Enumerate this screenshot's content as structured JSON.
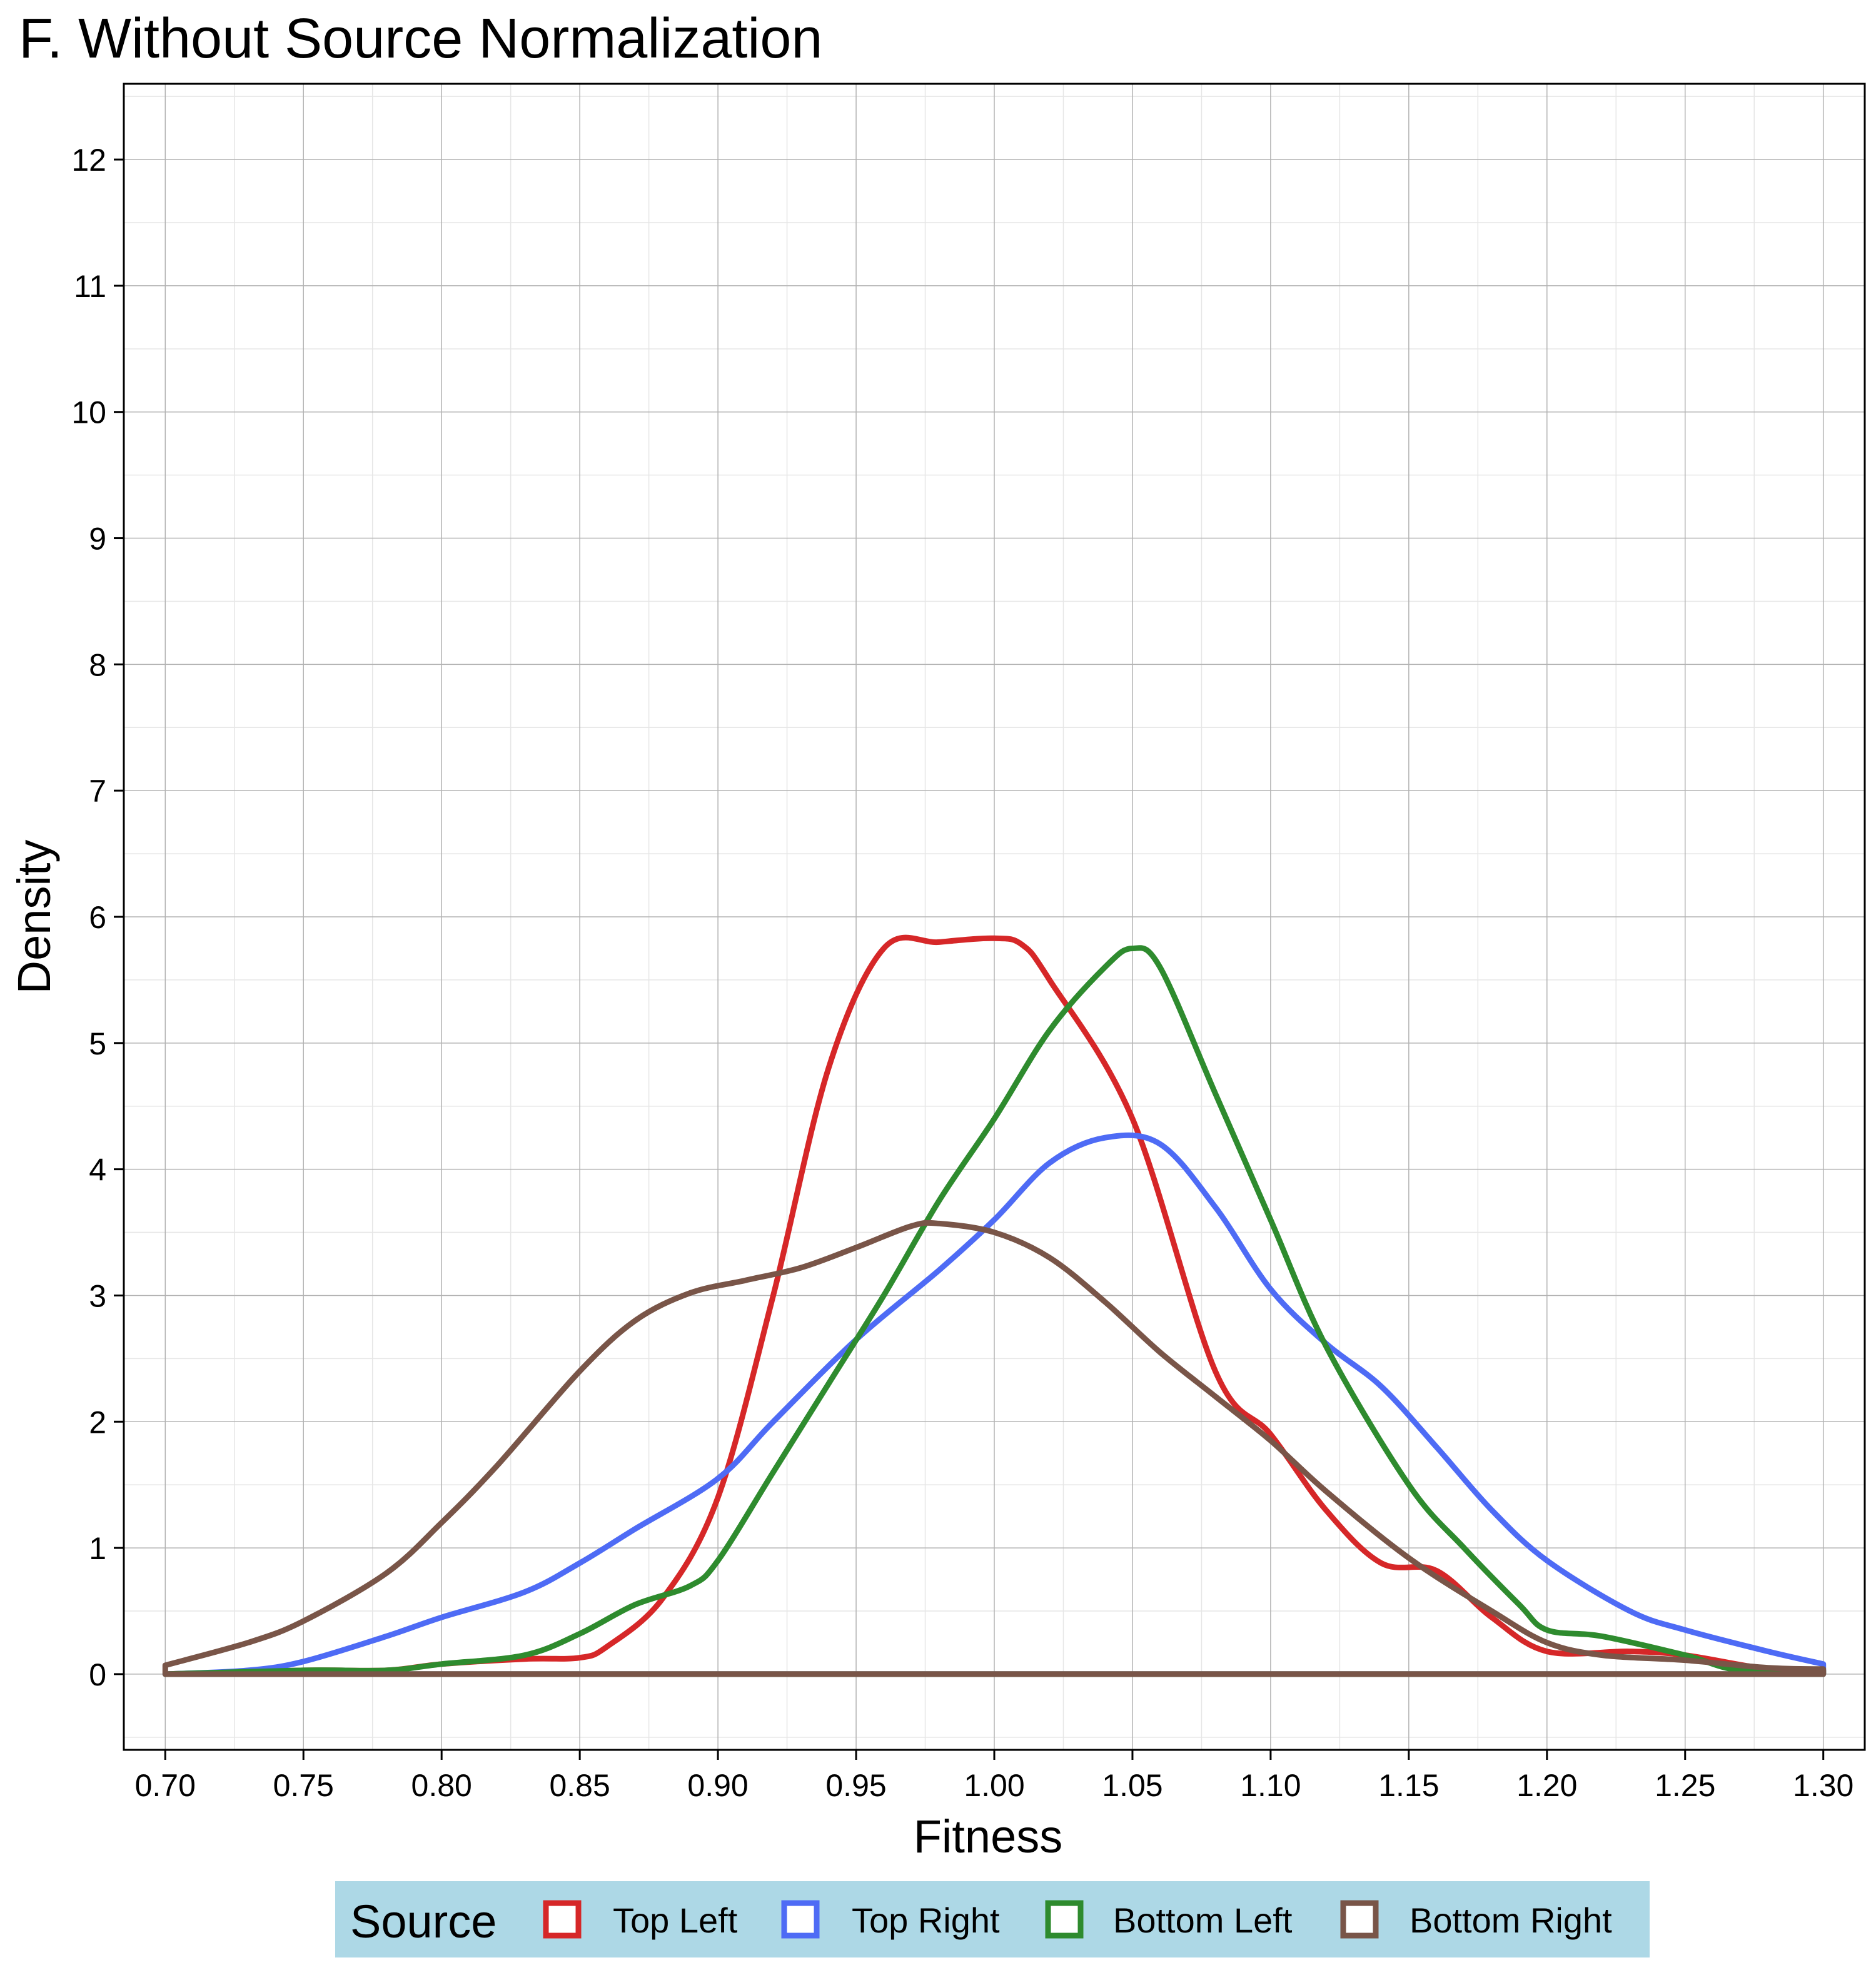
{
  "chart_data": {
    "type": "line",
    "title": "F. Without Source Normalization",
    "xlabel": "Fitness",
    "ylabel": "Density",
    "xlim": [
      0.685,
      1.315
    ],
    "ylim": [
      -0.6,
      12.6
    ],
    "x_ticks": [
      0.7,
      0.75,
      0.8,
      0.85,
      0.9,
      0.95,
      1.0,
      1.05,
      1.1,
      1.15,
      1.2,
      1.25,
      1.3
    ],
    "x_tick_labels": [
      "0.70",
      "0.75",
      "0.80",
      "0.85",
      "0.90",
      "0.95",
      "1.00",
      "1.05",
      "1.10",
      "1.15",
      "1.20",
      "1.25",
      "1.30"
    ],
    "y_ticks": [
      0,
      1,
      2,
      3,
      4,
      5,
      6,
      7,
      8,
      9,
      10,
      11,
      12
    ],
    "y_tick_labels": [
      "0",
      "1",
      "2",
      "3",
      "4",
      "5",
      "6",
      "7",
      "8",
      "9",
      "10",
      "11",
      "12"
    ],
    "grid": true,
    "legend": {
      "title": "Source",
      "position": "bottom",
      "background": "#ADD8E6",
      "entries": [
        "Top Left",
        "Top Right",
        "Bottom Left",
        "Bottom Right"
      ]
    },
    "series": [
      {
        "name": "Top Left",
        "color": "#D62728",
        "x": [
          0.7,
          0.75,
          0.78,
          0.8,
          0.83,
          0.85,
          0.86,
          0.88,
          0.9,
          0.92,
          0.94,
          0.96,
          0.98,
          1.0,
          1.01,
          1.02,
          1.05,
          1.08,
          1.1,
          1.12,
          1.14,
          1.16,
          1.18,
          1.2,
          1.23,
          1.25,
          1.28,
          1.3
        ],
        "y": [
          0.0,
          0.03,
          0.03,
          0.08,
          0.12,
          0.13,
          0.22,
          0.6,
          1.4,
          3.0,
          4.8,
          5.75,
          5.8,
          5.83,
          5.78,
          5.5,
          4.4,
          2.4,
          1.9,
          1.3,
          0.88,
          0.82,
          0.45,
          0.18,
          0.18,
          0.15,
          0.04,
          0.03
        ]
      },
      {
        "name": "Top Right",
        "color": "#4E6BF5",
        "x": [
          0.7,
          0.73,
          0.75,
          0.78,
          0.8,
          0.83,
          0.85,
          0.87,
          0.9,
          0.92,
          0.95,
          0.98,
          1.0,
          1.02,
          1.04,
          1.06,
          1.08,
          1.1,
          1.12,
          1.14,
          1.16,
          1.18,
          1.2,
          1.23,
          1.25,
          1.28,
          1.3
        ],
        "y": [
          0.0,
          0.03,
          0.1,
          0.3,
          0.45,
          0.65,
          0.88,
          1.15,
          1.55,
          2.0,
          2.65,
          3.2,
          3.6,
          4.05,
          4.25,
          4.2,
          3.7,
          3.05,
          2.62,
          2.28,
          1.8,
          1.3,
          0.9,
          0.5,
          0.35,
          0.18,
          0.08
        ]
      },
      {
        "name": "Bottom Left",
        "color": "#2E8B2E",
        "x": [
          0.7,
          0.75,
          0.78,
          0.8,
          0.83,
          0.85,
          0.87,
          0.89,
          0.9,
          0.92,
          0.94,
          0.96,
          0.98,
          1.0,
          1.02,
          1.04,
          1.05,
          1.06,
          1.08,
          1.1,
          1.12,
          1.15,
          1.17,
          1.19,
          1.2,
          1.22,
          1.25,
          1.27,
          1.3
        ],
        "y": [
          0.0,
          0.03,
          0.03,
          0.08,
          0.15,
          0.32,
          0.55,
          0.7,
          0.9,
          1.6,
          2.3,
          3.0,
          3.75,
          4.4,
          5.1,
          5.6,
          5.75,
          5.6,
          4.6,
          3.6,
          2.6,
          1.5,
          1.0,
          0.55,
          0.35,
          0.3,
          0.15,
          0.03,
          0.03
        ]
      },
      {
        "name": "Bottom Right",
        "color": "#795548",
        "x": [
          0.7,
          0.73,
          0.75,
          0.78,
          0.8,
          0.82,
          0.85,
          0.87,
          0.89,
          0.91,
          0.93,
          0.95,
          0.97,
          0.98,
          1.0,
          1.02,
          1.04,
          1.06,
          1.08,
          1.1,
          1.12,
          1.15,
          1.18,
          1.2,
          1.22,
          1.25,
          1.28,
          1.3
        ],
        "y": [
          0.07,
          0.25,
          0.42,
          0.8,
          1.2,
          1.65,
          2.4,
          2.8,
          3.02,
          3.12,
          3.22,
          3.38,
          3.55,
          3.57,
          3.5,
          3.3,
          2.95,
          2.55,
          2.2,
          1.85,
          1.45,
          0.92,
          0.5,
          0.25,
          0.15,
          0.11,
          0.05,
          0.04
        ]
      }
    ]
  }
}
